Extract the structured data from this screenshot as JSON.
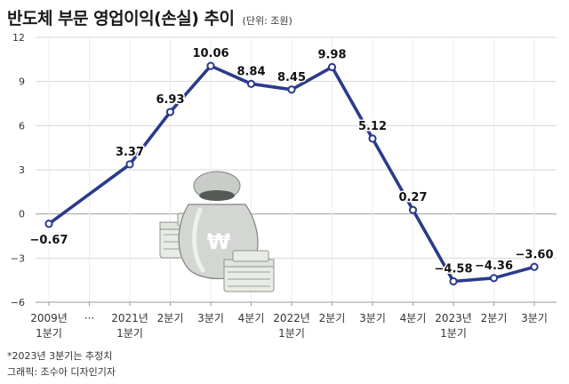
{
  "header": {
    "title": "반도체 부문 영업이익(손실) 추이",
    "unit": "(단위: 조원)"
  },
  "footnotes": {
    "note": "*2023년 3분기는 추정치",
    "credit": "그래픽: 조수아 디자인기자"
  },
  "colors": {
    "line": "#2b3a8c",
    "grid": "#d7d7d7",
    "axis": "#888888",
    "background": "#ffffff"
  },
  "illustration": {
    "icon": "money-bag-with-won-sign-and-cash-stacks-icon",
    "symbol": "₩"
  },
  "chart_data": {
    "type": "line",
    "categories": [
      [
        "2009년",
        "1분기"
      ],
      [
        "···",
        ""
      ],
      [
        "2021년",
        "1분기"
      ],
      [
        "2분기",
        ""
      ],
      [
        "3분기",
        ""
      ],
      [
        "4분기",
        ""
      ],
      [
        "2022년",
        "1분기"
      ],
      [
        "2분기",
        ""
      ],
      [
        "3분기",
        ""
      ],
      [
        "4분기",
        ""
      ],
      [
        "2023년",
        "1분기"
      ],
      [
        "2분기",
        ""
      ],
      [
        "3분기",
        ""
      ]
    ],
    "series": [
      {
        "values": [
          -0.67,
          null,
          3.37,
          6.93,
          10.06,
          8.84,
          8.45,
          9.98,
          5.12,
          0.27,
          -4.58,
          -4.36,
          -3.6
        ],
        "labels": [
          "−0.67",
          null,
          "3.37",
          "6.93",
          "10.06",
          "8.84",
          "8.45",
          "9.98",
          "5.12",
          "0.27",
          "−4.58",
          "−4.36",
          "−3.60"
        ]
      }
    ],
    "y_ticks": [
      "12",
      "9",
      "6",
      "3",
      "0",
      "−3",
      "−6"
    ],
    "y_tick_values": [
      12,
      9,
      6,
      3,
      0,
      -3,
      -6
    ],
    "ylim": [
      -6,
      12
    ],
    "grid": true,
    "legend": "none"
  }
}
